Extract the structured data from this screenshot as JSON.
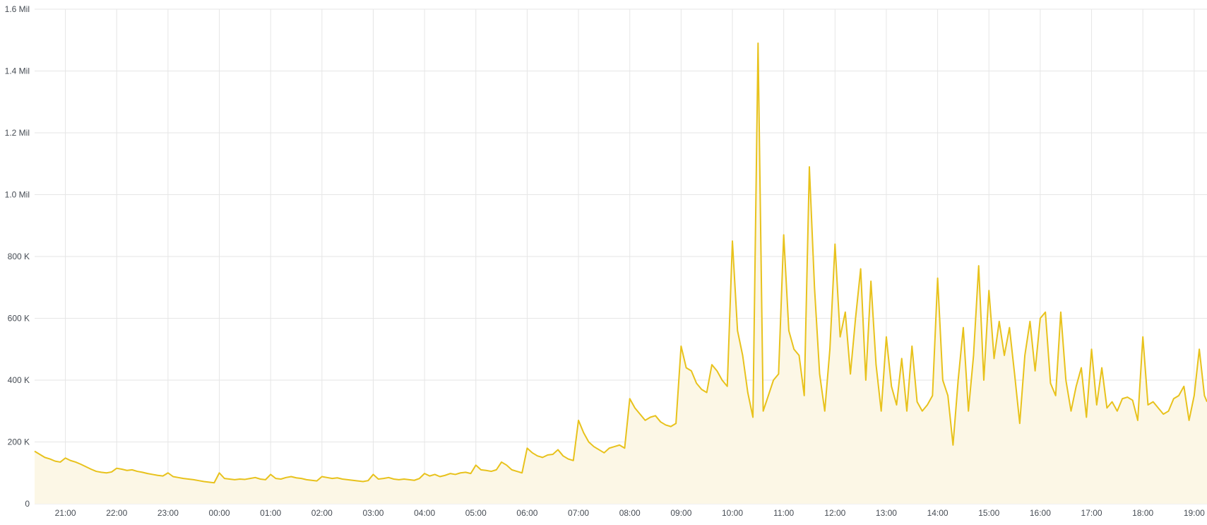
{
  "chart_data": {
    "type": "area",
    "title": "",
    "xlabel": "",
    "ylabel": "",
    "x_domain": [
      "20:24",
      "19:15"
    ],
    "ylim": [
      0,
      1600000
    ],
    "y_ticks": [
      {
        "value": 0,
        "label": "0"
      },
      {
        "value": 200000,
        "label": "200 K"
      },
      {
        "value": 400000,
        "label": "400 K"
      },
      {
        "value": 600000,
        "label": "600 K"
      },
      {
        "value": 800000,
        "label": "800 K"
      },
      {
        "value": 1000000,
        "label": "1.0 Mil"
      },
      {
        "value": 1200000,
        "label": "1.2 Mil"
      },
      {
        "value": 1400000,
        "label": "1.4 Mil"
      },
      {
        "value": 1600000,
        "label": "1.6 Mil"
      }
    ],
    "x_ticks": [
      "21:00",
      "22:00",
      "23:00",
      "00:00",
      "01:00",
      "02:00",
      "03:00",
      "04:00",
      "05:00",
      "06:00",
      "07:00",
      "08:00",
      "09:00",
      "10:00",
      "11:00",
      "12:00",
      "13:00",
      "14:00",
      "15:00",
      "16:00",
      "17:00",
      "18:00",
      "19:00"
    ],
    "grid": true,
    "line_color": "#e8c21c",
    "fill_color": "#fcf7e6",
    "grid_color": "#e6e6e6",
    "series": [
      {
        "points": [
          [
            "20:24",
            170000
          ],
          [
            "20:30",
            160000
          ],
          [
            "20:36",
            150000
          ],
          [
            "20:42",
            145000
          ],
          [
            "20:48",
            138000
          ],
          [
            "20:54",
            135000
          ],
          [
            "21:00",
            148000
          ],
          [
            "21:06",
            140000
          ],
          [
            "21:12",
            135000
          ],
          [
            "21:18",
            128000
          ],
          [
            "21:24",
            120000
          ],
          [
            "21:30",
            112000
          ],
          [
            "21:36",
            105000
          ],
          [
            "21:42",
            102000
          ],
          [
            "21:48",
            100000
          ],
          [
            "21:54",
            103000
          ],
          [
            "22:00",
            115000
          ],
          [
            "22:06",
            112000
          ],
          [
            "22:12",
            108000
          ],
          [
            "22:18",
            110000
          ],
          [
            "22:24",
            105000
          ],
          [
            "22:30",
            102000
          ],
          [
            "22:36",
            98000
          ],
          [
            "22:42",
            95000
          ],
          [
            "22:48",
            92000
          ],
          [
            "22:54",
            90000
          ],
          [
            "23:00",
            100000
          ],
          [
            "23:06",
            88000
          ],
          [
            "23:12",
            85000
          ],
          [
            "23:18",
            82000
          ],
          [
            "23:24",
            80000
          ],
          [
            "23:30",
            78000
          ],
          [
            "23:36",
            75000
          ],
          [
            "23:42",
            72000
          ],
          [
            "23:48",
            70000
          ],
          [
            "23:54",
            68000
          ],
          [
            "00:00",
            100000
          ],
          [
            "00:06",
            82000
          ],
          [
            "00:12",
            80000
          ],
          [
            "00:18",
            78000
          ],
          [
            "00:24",
            80000
          ],
          [
            "00:30",
            79000
          ],
          [
            "00:36",
            82000
          ],
          [
            "00:42",
            85000
          ],
          [
            "00:48",
            80000
          ],
          [
            "00:54",
            78000
          ],
          [
            "01:00",
            95000
          ],
          [
            "01:06",
            82000
          ],
          [
            "01:12",
            80000
          ],
          [
            "01:18",
            85000
          ],
          [
            "01:24",
            88000
          ],
          [
            "01:30",
            84000
          ],
          [
            "01:36",
            82000
          ],
          [
            "01:42",
            78000
          ],
          [
            "01:48",
            76000
          ],
          [
            "01:54",
            74000
          ],
          [
            "02:00",
            88000
          ],
          [
            "02:06",
            85000
          ],
          [
            "02:12",
            82000
          ],
          [
            "02:18",
            84000
          ],
          [
            "02:24",
            80000
          ],
          [
            "02:30",
            78000
          ],
          [
            "02:36",
            76000
          ],
          [
            "02:42",
            74000
          ],
          [
            "02:48",
            72000
          ],
          [
            "02:54",
            75000
          ],
          [
            "03:00",
            95000
          ],
          [
            "03:06",
            80000
          ],
          [
            "03:12",
            82000
          ],
          [
            "03:18",
            85000
          ],
          [
            "03:24",
            80000
          ],
          [
            "03:30",
            78000
          ],
          [
            "03:36",
            80000
          ],
          [
            "03:42",
            78000
          ],
          [
            "03:48",
            76000
          ],
          [
            "03:54",
            82000
          ],
          [
            "04:00",
            98000
          ],
          [
            "04:06",
            90000
          ],
          [
            "04:12",
            95000
          ],
          [
            "04:18",
            88000
          ],
          [
            "04:24",
            92000
          ],
          [
            "04:30",
            98000
          ],
          [
            "04:36",
            95000
          ],
          [
            "04:42",
            100000
          ],
          [
            "04:48",
            102000
          ],
          [
            "04:54",
            98000
          ],
          [
            "05:00",
            125000
          ],
          [
            "05:06",
            110000
          ],
          [
            "05:12",
            108000
          ],
          [
            "05:18",
            105000
          ],
          [
            "05:24",
            110000
          ],
          [
            "05:30",
            135000
          ],
          [
            "05:36",
            125000
          ],
          [
            "05:42",
            110000
          ],
          [
            "05:48",
            105000
          ],
          [
            "05:54",
            100000
          ],
          [
            "06:00",
            180000
          ],
          [
            "06:06",
            165000
          ],
          [
            "06:12",
            155000
          ],
          [
            "06:18",
            150000
          ],
          [
            "06:24",
            158000
          ],
          [
            "06:30",
            160000
          ],
          [
            "06:36",
            175000
          ],
          [
            "06:42",
            155000
          ],
          [
            "06:48",
            145000
          ],
          [
            "06:54",
            140000
          ],
          [
            "07:00",
            270000
          ],
          [
            "07:06",
            230000
          ],
          [
            "07:12",
            200000
          ],
          [
            "07:18",
            185000
          ],
          [
            "07:24",
            175000
          ],
          [
            "07:30",
            165000
          ],
          [
            "07:36",
            180000
          ],
          [
            "07:42",
            185000
          ],
          [
            "07:48",
            190000
          ],
          [
            "07:54",
            180000
          ],
          [
            "08:00",
            340000
          ],
          [
            "08:06",
            310000
          ],
          [
            "08:12",
            290000
          ],
          [
            "08:18",
            270000
          ],
          [
            "08:24",
            280000
          ],
          [
            "08:30",
            285000
          ],
          [
            "08:36",
            265000
          ],
          [
            "08:42",
            255000
          ],
          [
            "08:48",
            250000
          ],
          [
            "08:54",
            260000
          ],
          [
            "09:00",
            510000
          ],
          [
            "09:06",
            440000
          ],
          [
            "09:12",
            430000
          ],
          [
            "09:18",
            390000
          ],
          [
            "09:24",
            370000
          ],
          [
            "09:30",
            360000
          ],
          [
            "09:36",
            450000
          ],
          [
            "09:42",
            430000
          ],
          [
            "09:48",
            400000
          ],
          [
            "09:54",
            380000
          ],
          [
            "10:00",
            850000
          ],
          [
            "10:06",
            560000
          ],
          [
            "10:12",
            480000
          ],
          [
            "10:18",
            360000
          ],
          [
            "10:24",
            280000
          ],
          [
            "10:30",
            1490000
          ],
          [
            "10:36",
            300000
          ],
          [
            "10:42",
            350000
          ],
          [
            "10:48",
            400000
          ],
          [
            "10:54",
            420000
          ],
          [
            "11:00",
            870000
          ],
          [
            "11:06",
            560000
          ],
          [
            "11:12",
            500000
          ],
          [
            "11:18",
            480000
          ],
          [
            "11:24",
            350000
          ],
          [
            "11:30",
            1090000
          ],
          [
            "11:36",
            700000
          ],
          [
            "11:42",
            420000
          ],
          [
            "11:48",
            300000
          ],
          [
            "11:54",
            500000
          ],
          [
            "12:00",
            840000
          ],
          [
            "12:06",
            540000
          ],
          [
            "12:12",
            620000
          ],
          [
            "12:18",
            420000
          ],
          [
            "12:24",
            600000
          ],
          [
            "12:30",
            760000
          ],
          [
            "12:36",
            400000
          ],
          [
            "12:42",
            720000
          ],
          [
            "12:48",
            450000
          ],
          [
            "12:54",
            300000
          ],
          [
            "13:00",
            540000
          ],
          [
            "13:06",
            380000
          ],
          [
            "13:12",
            320000
          ],
          [
            "13:18",
            470000
          ],
          [
            "13:24",
            300000
          ],
          [
            "13:30",
            510000
          ],
          [
            "13:36",
            330000
          ],
          [
            "13:42",
            300000
          ],
          [
            "13:48",
            320000
          ],
          [
            "13:54",
            350000
          ],
          [
            "14:00",
            730000
          ],
          [
            "14:06",
            400000
          ],
          [
            "14:12",
            350000
          ],
          [
            "14:18",
            190000
          ],
          [
            "14:24",
            400000
          ],
          [
            "14:30",
            570000
          ],
          [
            "14:36",
            300000
          ],
          [
            "14:42",
            480000
          ],
          [
            "14:48",
            770000
          ],
          [
            "14:54",
            400000
          ],
          [
            "15:00",
            690000
          ],
          [
            "15:06",
            470000
          ],
          [
            "15:12",
            590000
          ],
          [
            "15:18",
            480000
          ],
          [
            "15:24",
            570000
          ],
          [
            "15:30",
            420000
          ],
          [
            "15:36",
            260000
          ],
          [
            "15:42",
            480000
          ],
          [
            "15:48",
            590000
          ],
          [
            "15:54",
            430000
          ],
          [
            "16:00",
            600000
          ],
          [
            "16:06",
            620000
          ],
          [
            "16:12",
            390000
          ],
          [
            "16:18",
            350000
          ],
          [
            "16:24",
            620000
          ],
          [
            "16:30",
            400000
          ],
          [
            "16:36",
            300000
          ],
          [
            "16:42",
            380000
          ],
          [
            "16:48",
            440000
          ],
          [
            "16:54",
            280000
          ],
          [
            "17:00",
            500000
          ],
          [
            "17:06",
            320000
          ],
          [
            "17:12",
            440000
          ],
          [
            "17:18",
            310000
          ],
          [
            "17:24",
            330000
          ],
          [
            "17:30",
            300000
          ],
          [
            "17:36",
            340000
          ],
          [
            "17:42",
            345000
          ],
          [
            "17:48",
            335000
          ],
          [
            "17:54",
            270000
          ],
          [
            "18:00",
            540000
          ],
          [
            "18:06",
            320000
          ],
          [
            "18:12",
            330000
          ],
          [
            "18:18",
            310000
          ],
          [
            "18:24",
            290000
          ],
          [
            "18:30",
            300000
          ],
          [
            "18:36",
            340000
          ],
          [
            "18:42",
            350000
          ],
          [
            "18:48",
            380000
          ],
          [
            "18:54",
            270000
          ],
          [
            "19:00",
            350000
          ],
          [
            "19:06",
            500000
          ],
          [
            "19:12",
            350000
          ],
          [
            "19:15",
            330000
          ]
        ]
      }
    ]
  }
}
